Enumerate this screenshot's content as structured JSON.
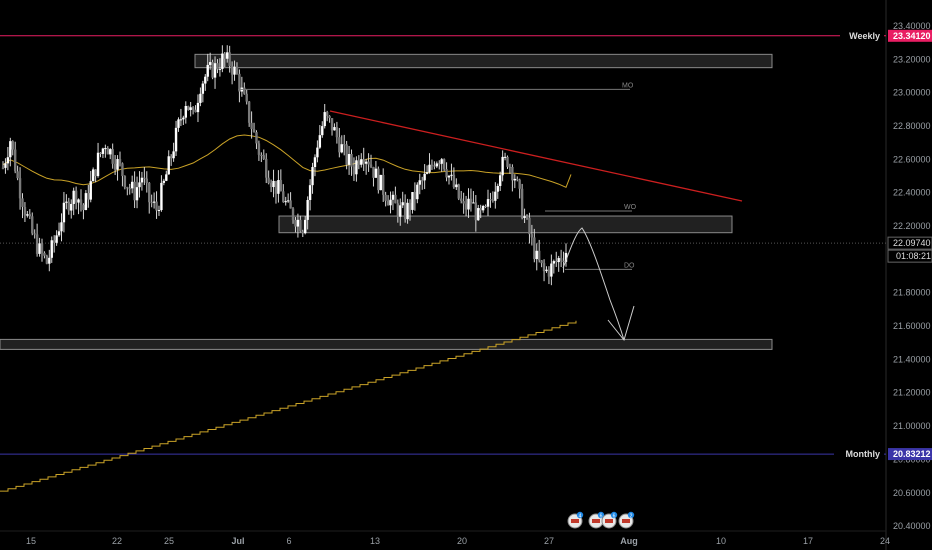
{
  "chart_data": {
    "type": "candlestick",
    "instrument_note": "",
    "y_axis": {
      "ticks": [
        "23.40000",
        "23.20000",
        "23.00000",
        "22.80000",
        "22.60000",
        "22.40000",
        "22.20000",
        "22.00000",
        "21.80000",
        "21.60000",
        "21.40000",
        "21.20000",
        "21.00000",
        "20.80000",
        "20.60000",
        "20.40000"
      ],
      "range": [
        20.35,
        23.55
      ]
    },
    "x_axis": {
      "ticks": [
        "15",
        "22",
        "25",
        "Jul",
        "6",
        "13",
        "20",
        "27",
        "Aug",
        "10",
        "17",
        "24"
      ]
    },
    "current_price": {
      "value": "22.09740",
      "countdown": "01:08:21"
    },
    "levels": [
      {
        "label": "Weekly",
        "value": "23.34120",
        "color": "#e91e63"
      },
      {
        "label": "Monthly",
        "value": "20.83212",
        "color": "#3b35a8"
      }
    ],
    "zones": [
      {
        "name": "resistance-zone",
        "from": 23.15,
        "to": 23.23
      },
      {
        "name": "support-zone-mid",
        "from": 22.16,
        "to": 22.26
      },
      {
        "name": "support-zone-low",
        "from": 21.46,
        "to": 21.52
      }
    ],
    "marker_lines": [
      {
        "label": "MO",
        "value": 23.02
      },
      {
        "label": "WO",
        "value": 22.29
      },
      {
        "label": "DO",
        "value": 21.94
      }
    ],
    "trendline": {
      "color": "#cc1f1f",
      "from_value": 22.89,
      "to_value": 22.35
    },
    "moving_average": {
      "color": "#c9a227"
    },
    "price_series": [
      22.55,
      22.72,
      22.48,
      22.3,
      22.15,
      22.05,
      21.98,
      22.1,
      22.25,
      22.35,
      22.4,
      22.3,
      22.45,
      22.6,
      22.7,
      22.62,
      22.55,
      22.45,
      22.4,
      22.5,
      22.35,
      22.3,
      22.45,
      22.62,
      22.8,
      22.95,
      22.85,
      23.05,
      23.12,
      23.15,
      23.2,
      23.18,
      23.1,
      22.95,
      22.8,
      22.65,
      22.55,
      22.45,
      22.4,
      22.3,
      22.25,
      22.2,
      22.45,
      22.7,
      22.85,
      22.8,
      22.7,
      22.6,
      22.55,
      22.65,
      22.6,
      22.5,
      22.42,
      22.35,
      22.3,
      22.28,
      22.35,
      22.45,
      22.5,
      22.6,
      22.62,
      22.5,
      22.4,
      22.3,
      22.35,
      22.25,
      22.28,
      22.4,
      22.55,
      22.6,
      22.5,
      22.3,
      22.15,
      22.0,
      21.92,
      21.95,
      22.0,
      22.05
    ],
    "event_icons": [
      "4",
      "6",
      "6",
      "2"
    ]
  }
}
